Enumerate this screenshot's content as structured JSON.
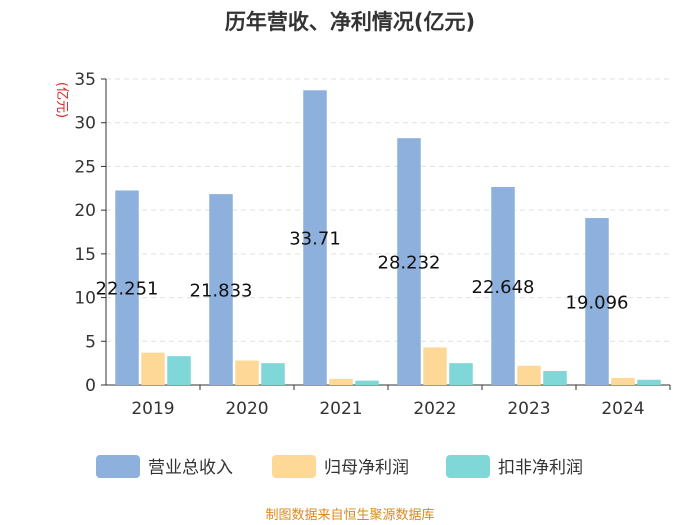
{
  "chart_data": {
    "type": "bar",
    "title": "历年营收、净利情况(亿元)",
    "ylabel": "(亿元)",
    "xlabel": "",
    "ylim": [
      0,
      35
    ],
    "yticks": [
      0,
      5,
      10,
      15,
      20,
      25,
      30,
      35
    ],
    "grid": true,
    "legend_position": "bottom",
    "categories": [
      "2019",
      "2020",
      "2021",
      "2022",
      "2023",
      "2024"
    ],
    "series": [
      {
        "name": "营业总收入",
        "color": "#8eb0dc",
        "values": [
          22.251,
          21.833,
          33.71,
          28.232,
          22.648,
          19.096
        ],
        "labels": [
          "22.251",
          "21.833",
          "33.71",
          "28.232",
          "22.648",
          "19.096"
        ]
      },
      {
        "name": "归母净利润",
        "color": "#fed896",
        "values": [
          3.7,
          2.8,
          0.7,
          4.3,
          2.2,
          0.8
        ]
      },
      {
        "name": "扣非净利润",
        "color": "#7fd7d8",
        "values": [
          3.3,
          2.5,
          0.5,
          2.5,
          1.6,
          0.6
        ]
      }
    ]
  },
  "source": "制图数据来自恒生聚源数据库"
}
